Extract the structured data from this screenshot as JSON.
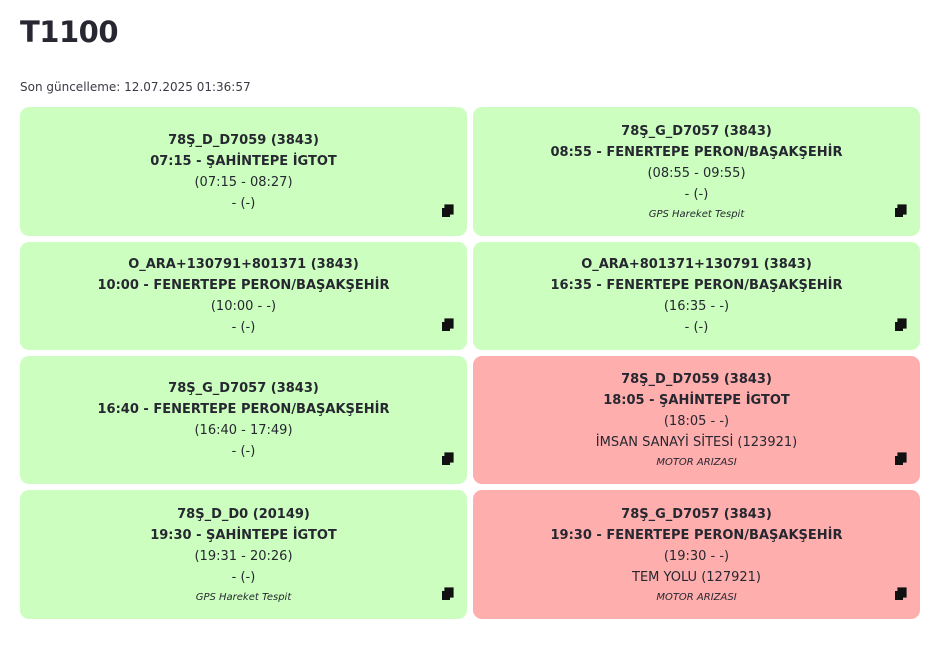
{
  "title": "T1100",
  "updated": "Son güncelleme: 12.07.2025 01:36:57",
  "cards": [
    {
      "status": "ok",
      "header": "78Ş_D_D7059 (3843)",
      "route": "07:15 - ŞAHİNTEPE İGTOT",
      "times": "(07:15 - 08:27)",
      "location": "- (-)",
      "note": ""
    },
    {
      "status": "ok",
      "header": "78Ş_G_D7057 (3843)",
      "route": "08:55 - FENERTEPE PERON/BAŞAKŞEHİR",
      "times": "(08:55 - 09:55)",
      "location": "- (-)",
      "note": "GPS Hareket Tespit"
    },
    {
      "status": "ok",
      "header": "O_ARA+130791+801371 (3843)",
      "route": "10:00 - FENERTEPE PERON/BAŞAKŞEHİR",
      "times": "(10:00 - -)",
      "location": "- (-)",
      "note": ""
    },
    {
      "status": "ok",
      "header": "O_ARA+801371+130791 (3843)",
      "route": "16:35 - FENERTEPE PERON/BAŞAKŞEHİR",
      "times": "(16:35 - -)",
      "location": "- (-)",
      "note": ""
    },
    {
      "status": "ok",
      "header": "78Ş_G_D7057 (3843)",
      "route": "16:40 - FENERTEPE PERON/BAŞAKŞEHİR",
      "times": "(16:40 - 17:49)",
      "location": "- (-)",
      "note": ""
    },
    {
      "status": "bad",
      "header": "78Ş_D_D7059 (3843)",
      "route": "18:05 - ŞAHİNTEPE İGTOT",
      "times": "(18:05 - -)",
      "location": "İMSAN SANAYİ SİTESİ (123921)",
      "note": "MOTOR ARIZASI"
    },
    {
      "status": "ok",
      "header": "78Ş_D_D0 (20149)",
      "route": "19:30 - ŞAHİNTEPE İGTOT",
      "times": "(19:31 - 20:26)",
      "location": "- (-)",
      "note": "GPS Hareket Tespit"
    },
    {
      "status": "bad",
      "header": "78Ş_G_D7057 (3843)",
      "route": "19:30 - FENERTEPE PERON/BAŞAKŞEHİR",
      "times": "(19:30 - -)",
      "location": "TEM YOLU (127921)",
      "note": "MOTOR ARIZASI"
    }
  ],
  "icons": {
    "copy": "copy-icon"
  },
  "colors": {
    "ok": "#ccffbf",
    "bad": "#ffaeae"
  }
}
